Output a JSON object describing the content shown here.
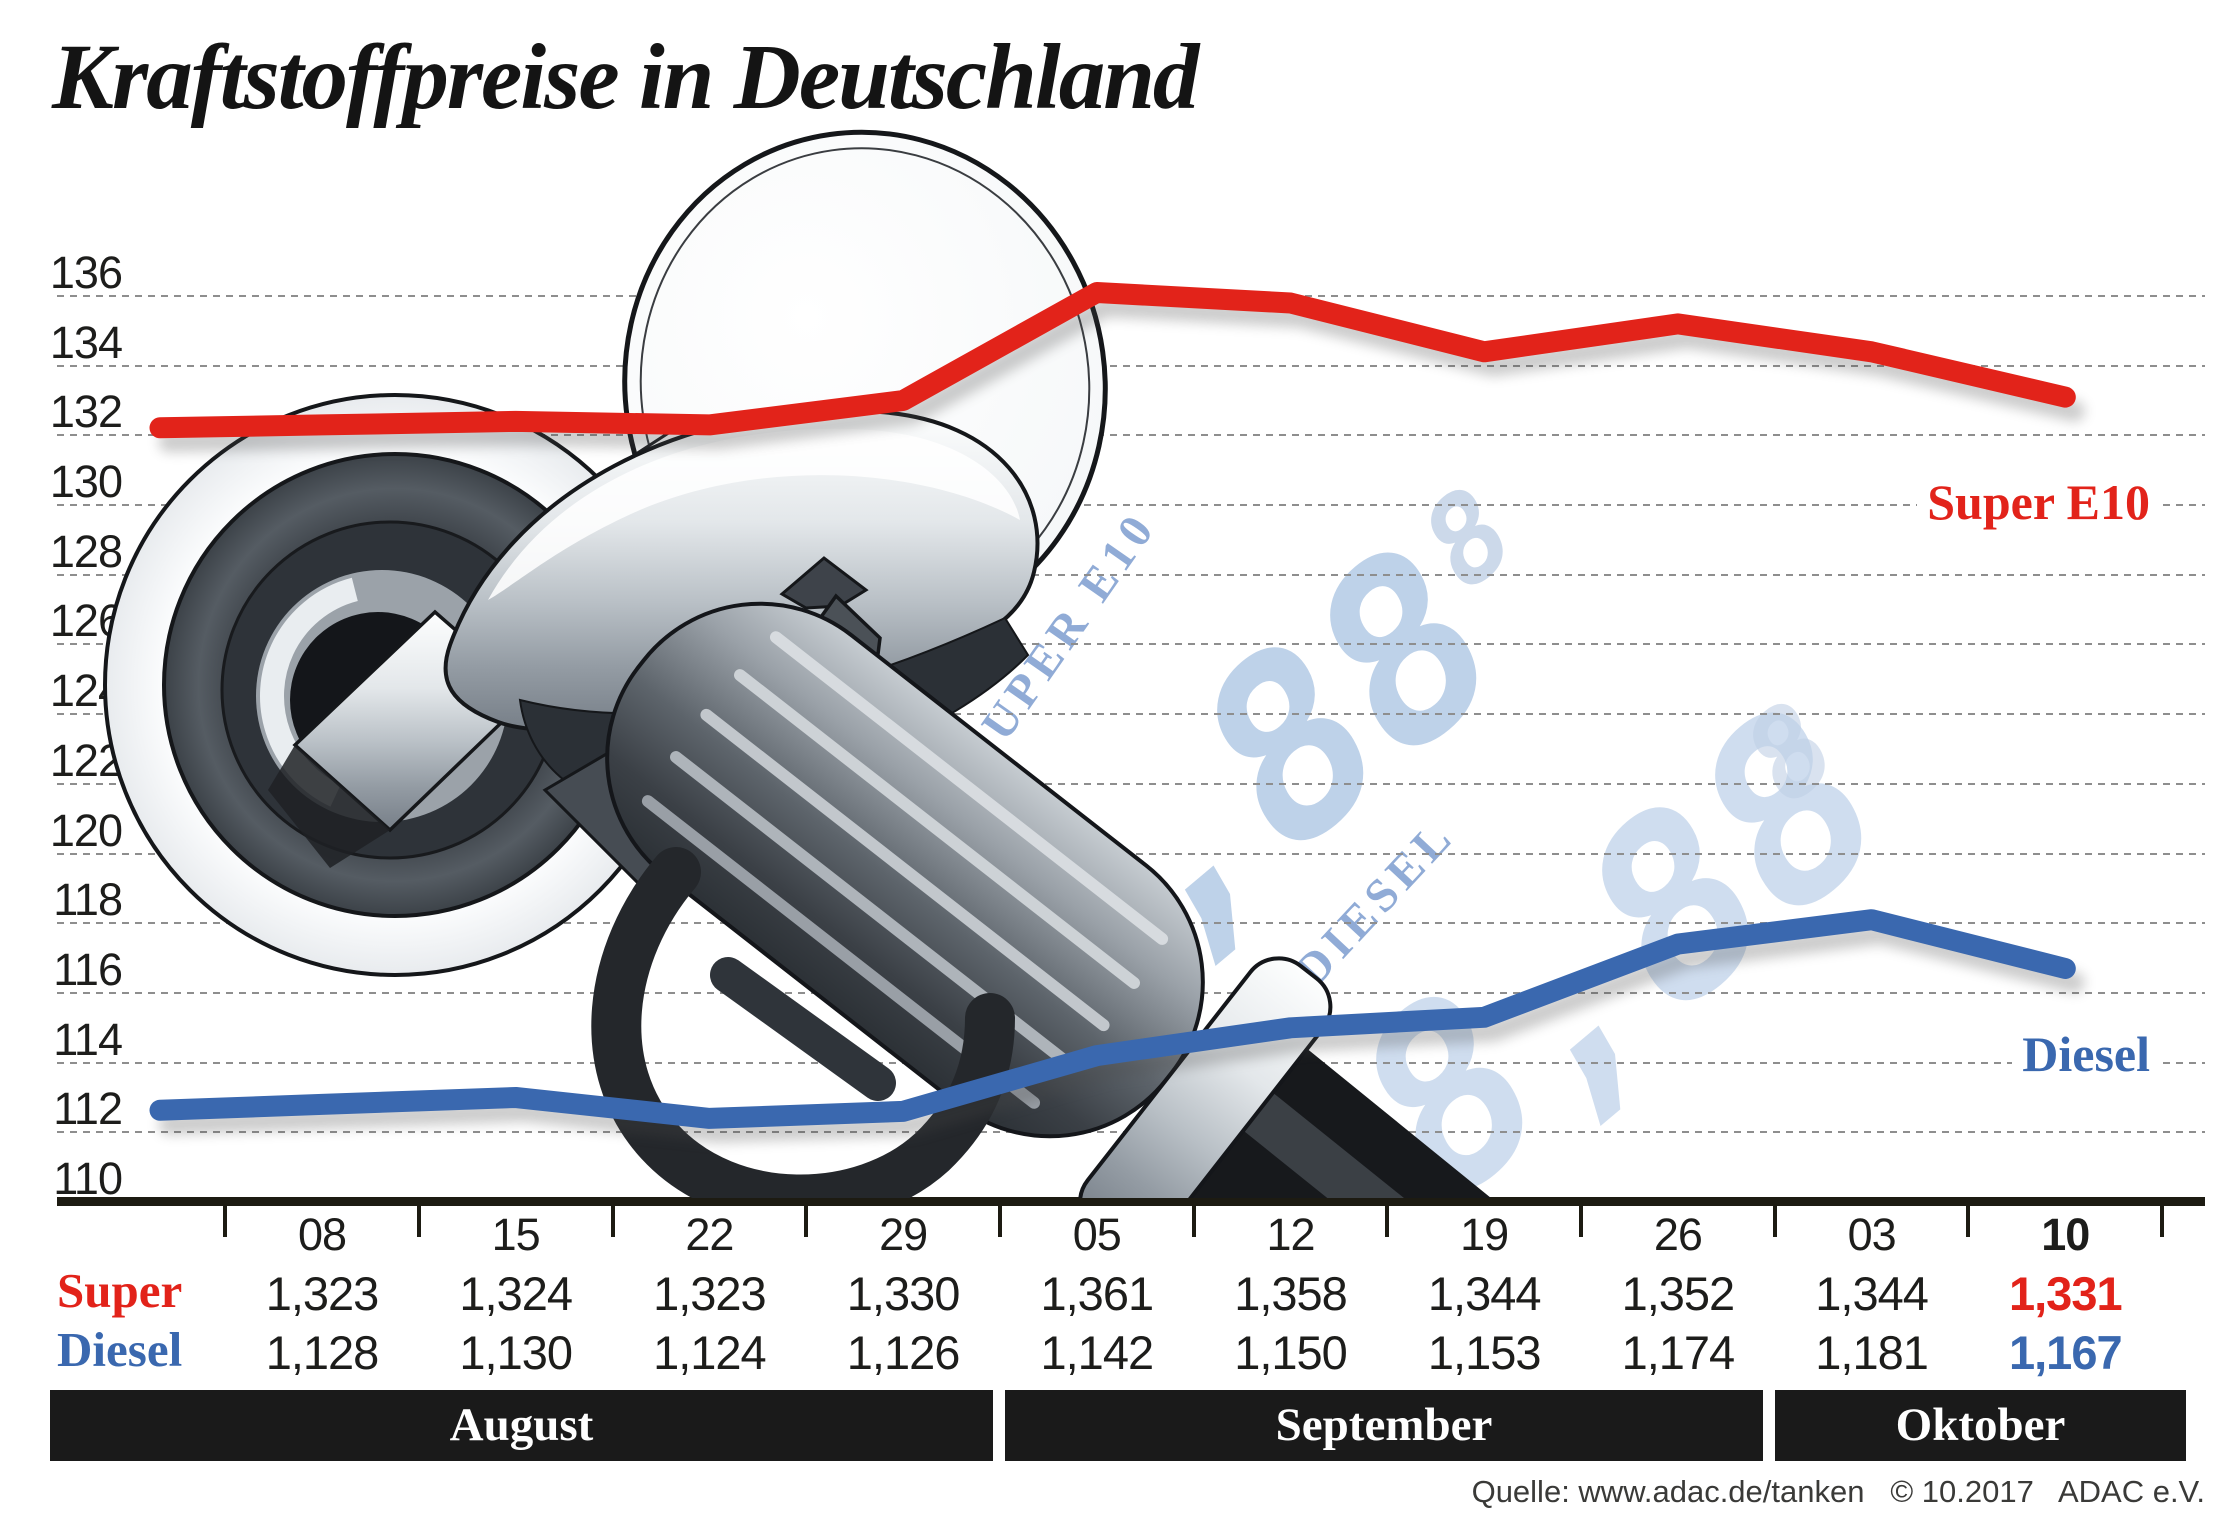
{
  "title": "Kraftstoffpreise in Deutschland",
  "source": "Quelle: www.adac.de/tanken   © 10.2017   ADAC e.V.",
  "legend": {
    "super": "Super E10",
    "diesel": "Diesel"
  },
  "watermark": {
    "super_label": "SUPER E10",
    "diesel_label": "DIESEL",
    "super_digits": "8,88",
    "diesel_digits": "8,88",
    "super_sup": "8",
    "diesel_sup": "8"
  },
  "colors": {
    "super": "#e2231a",
    "diesel": "#3a68af",
    "axis": "#1d1b12",
    "month_bar": "#1a1a1a",
    "grid": "#8e8e8e",
    "watermark_blue": "#a9c3e2"
  },
  "chart_data": {
    "type": "line",
    "title": "Kraftstoffpreise in Deutschland",
    "x": [
      "08",
      "15",
      "22",
      "29",
      "05",
      "12",
      "19",
      "26",
      "03",
      "10"
    ],
    "months": [
      {
        "label": "August",
        "cols": 4
      },
      {
        "label": "September",
        "cols": 4
      },
      {
        "label": "Oktober",
        "cols": 2
      }
    ],
    "yticks": [
      136,
      134,
      132,
      130,
      128,
      126,
      124,
      122,
      120,
      118,
      116,
      114,
      112,
      110
    ],
    "ylim": [
      110,
      137.5
    ],
    "grid": "dashed",
    "legend_position": "right-inline",
    "series": [
      {
        "name": "Super E10",
        "color": "#e2231a",
        "values": [
          132.3,
          132.4,
          132.3,
          133.0,
          136.1,
          135.8,
          134.4,
          135.2,
          134.4,
          133.1
        ]
      },
      {
        "name": "Diesel",
        "color": "#3a68af",
        "values": [
          112.8,
          113.0,
          112.4,
          112.6,
          114.2,
          115.0,
          115.3,
          117.4,
          118.1,
          116.7
        ]
      }
    ]
  },
  "table": {
    "rows": [
      {
        "label": "Super",
        "color": "#e2231a",
        "display": [
          "1,323",
          "1,324",
          "1,323",
          "1,330",
          "1,361",
          "1,358",
          "1,344",
          "1,352",
          "1,344",
          "1,331"
        ]
      },
      {
        "label": "Diesel",
        "color": "#3a68af",
        "display": [
          "1,128",
          "1,130",
          "1,124",
          "1,126",
          "1,142",
          "1,150",
          "1,153",
          "1,174",
          "1,181",
          "1,167"
        ]
      }
    ]
  }
}
